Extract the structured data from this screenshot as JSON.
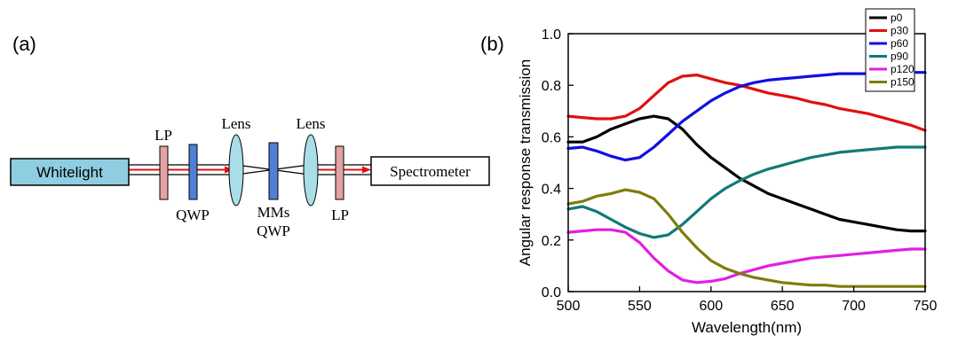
{
  "panel_a": {
    "label": "(a)",
    "source_label": "Whitelight",
    "detector_label": "Spectrometer",
    "component_labels": {
      "lp_left": "LP",
      "qwp_left": "QWP",
      "lens_left": "Lens",
      "mms": "MMs",
      "qwp_mid": "QWP",
      "lens_right": "Lens",
      "lp_right": "LP"
    },
    "colors": {
      "source_fill": "#8fcde0",
      "polarizer_fill": "#e3a3a3",
      "waveplate_fill": "#4f7fd6",
      "lens_fill": "#a9dde8",
      "beam": "#e0101a"
    }
  },
  "panel_b": {
    "label": "(b)"
  },
  "chart_data": {
    "type": "line",
    "title": "",
    "xlabel": "Wavelength(nm)",
    "ylabel": "Angular response transmission",
    "xlim": [
      500,
      750
    ],
    "ylim": [
      0.0,
      1.0
    ],
    "xticks": [
      500,
      550,
      600,
      650,
      700,
      750
    ],
    "yticks": [
      0.0,
      0.2,
      0.4,
      0.6,
      0.8,
      1.0
    ],
    "ytick_labels": [
      "0.0",
      "0.2",
      "0.4",
      "0.6",
      "0.8",
      "1.0"
    ],
    "grid": false,
    "legend_position": "top-right",
    "x": [
      500,
      510,
      520,
      530,
      540,
      550,
      560,
      570,
      580,
      590,
      600,
      610,
      620,
      630,
      640,
      650,
      660,
      670,
      680,
      690,
      700,
      710,
      720,
      730,
      740,
      750
    ],
    "series": [
      {
        "name": "p0",
        "color": "#000000",
        "values": [
          0.58,
          0.58,
          0.6,
          0.63,
          0.65,
          0.67,
          0.68,
          0.67,
          0.63,
          0.57,
          0.52,
          0.48,
          0.44,
          0.41,
          0.38,
          0.36,
          0.34,
          0.32,
          0.3,
          0.28,
          0.27,
          0.26,
          0.25,
          0.24,
          0.235,
          0.235
        ]
      },
      {
        "name": "p30",
        "color": "#e01010",
        "values": [
          0.68,
          0.675,
          0.67,
          0.67,
          0.68,
          0.71,
          0.76,
          0.81,
          0.835,
          0.84,
          0.825,
          0.81,
          0.8,
          0.785,
          0.77,
          0.76,
          0.75,
          0.735,
          0.725,
          0.71,
          0.7,
          0.69,
          0.675,
          0.66,
          0.645,
          0.625
        ]
      },
      {
        "name": "p60",
        "color": "#1010e0",
        "values": [
          0.555,
          0.56,
          0.545,
          0.525,
          0.51,
          0.52,
          0.56,
          0.61,
          0.66,
          0.7,
          0.74,
          0.77,
          0.795,
          0.81,
          0.82,
          0.825,
          0.83,
          0.835,
          0.84,
          0.845,
          0.845,
          0.845,
          0.85,
          0.85,
          0.85,
          0.85
        ]
      },
      {
        "name": "p90",
        "color": "#127a78",
        "values": [
          0.32,
          0.33,
          0.31,
          0.28,
          0.25,
          0.225,
          0.21,
          0.22,
          0.26,
          0.31,
          0.36,
          0.4,
          0.43,
          0.455,
          0.475,
          0.49,
          0.505,
          0.52,
          0.53,
          0.54,
          0.545,
          0.55,
          0.555,
          0.56,
          0.56,
          0.56
        ]
      },
      {
        "name": "p120",
        "color": "#e21ee2",
        "values": [
          0.23,
          0.235,
          0.24,
          0.24,
          0.23,
          0.19,
          0.13,
          0.08,
          0.045,
          0.035,
          0.04,
          0.05,
          0.07,
          0.085,
          0.1,
          0.11,
          0.12,
          0.13,
          0.135,
          0.14,
          0.145,
          0.15,
          0.155,
          0.16,
          0.165,
          0.165
        ]
      },
      {
        "name": "p150",
        "color": "#7e7c0e",
        "values": [
          0.34,
          0.35,
          0.37,
          0.38,
          0.395,
          0.385,
          0.36,
          0.3,
          0.23,
          0.17,
          0.12,
          0.09,
          0.07,
          0.055,
          0.045,
          0.035,
          0.03,
          0.025,
          0.025,
          0.02,
          0.02,
          0.02,
          0.02,
          0.02,
          0.02,
          0.02
        ]
      }
    ]
  }
}
